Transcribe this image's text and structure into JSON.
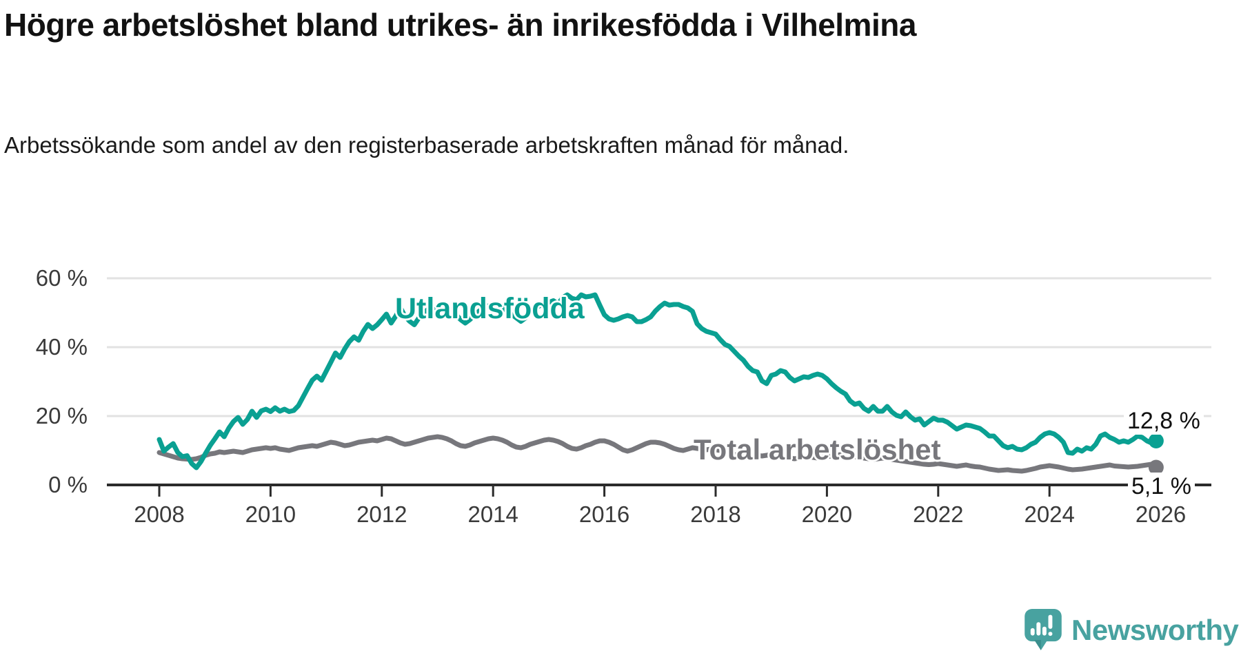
{
  "title": "Högre arbetslöshet bland utrikes- än inrikesfödda i Vilhelmina",
  "subtitle": "Arbetssökande som andel av den registerbaserade arbetskraften månad för månad.",
  "branding": {
    "name": "Newsworthy",
    "color": "#48a2a0",
    "icon": "newsworthy-speech-bubble-chart-icon"
  },
  "chart_data": {
    "type": "line",
    "title": "Högre arbetslöshet bland utrikes- än inrikesfödda i Vilhelmina",
    "xlabel": "",
    "ylabel": "Arbetssökande som andel av den registerbaserade arbetskraften",
    "frequency": "monthly",
    "x_start": "2008-01",
    "x_end": "2025-12",
    "ylim": [
      0,
      60
    ],
    "grid": true,
    "gridline_values": [
      20,
      40,
      60
    ],
    "gridline_color": "#e2e2e2",
    "axis_color": "#2b2b2b",
    "y_axis_labels": [
      {
        "value": 60,
        "label": "60 %"
      },
      {
        "value": 40,
        "label": "40 %"
      },
      {
        "value": 20,
        "label": "20 %"
      },
      {
        "value": 0,
        "label": "0 %"
      }
    ],
    "x_axis_ticks": [
      {
        "year": 2008,
        "label": "2008",
        "tick_mark": true
      },
      {
        "year": 2010,
        "label": "2010",
        "tick_mark": true
      },
      {
        "year": 2012,
        "label": "2012",
        "tick_mark": true
      },
      {
        "year": 2014,
        "label": "2014",
        "tick_mark": true
      },
      {
        "year": 2016,
        "label": "2016",
        "tick_mark": true
      },
      {
        "year": 2018,
        "label": "2018",
        "tick_mark": true
      },
      {
        "year": 2020,
        "label": "2020",
        "tick_mark": true
      },
      {
        "year": 2022,
        "label": "2022",
        "tick_mark": true
      },
      {
        "year": 2024,
        "label": "2024",
        "tick_mark": true
      },
      {
        "year": 2026,
        "label": "2026",
        "tick_mark": false
      }
    ],
    "legend": "inline-labels",
    "series": [
      {
        "name": "Utlandsfödda",
        "color": "#0aa092",
        "end_label": "12,8 %",
        "end_value": 12.8,
        "values": [
          13.2,
          9.8,
          11.0,
          12.0,
          9.4,
          8.2,
          8.5,
          6.2,
          5.0,
          6.8,
          9.2,
          11.5,
          13.4,
          15.4,
          14.0,
          16.5,
          18.4,
          19.6,
          17.6,
          19.0,
          21.4,
          19.6,
          21.5,
          22.0,
          21.3,
          22.4,
          21.4,
          22.0,
          21.3,
          21.6,
          23.0,
          25.5,
          28.0,
          30.4,
          31.6,
          30.4,
          33.0,
          35.6,
          38.3,
          37.0,
          39.5,
          41.6,
          43.0,
          42.0,
          44.6,
          46.6,
          45.4,
          46.5,
          48.0,
          49.6,
          47.0,
          49.0,
          51.5,
          49.0,
          47.5,
          46.5,
          48.5,
          50.0,
          51.0,
          50.0,
          51.5,
          52.0,
          50.5,
          51.0,
          49.5,
          48.0,
          47.0,
          48.0,
          49.5,
          50.5,
          51.5,
          52.0,
          51.0,
          52.5,
          51.5,
          50.5,
          49.5,
          48.5,
          47.5,
          48.5,
          50.0,
          51.0,
          52.0,
          52.5,
          53.0,
          53.5,
          52.5,
          54.4,
          55.2,
          54.2,
          53.8,
          55.2,
          54.6,
          54.8,
          55.2,
          52.2,
          49.4,
          48.2,
          47.8,
          48.2,
          48.8,
          49.2,
          48.8,
          47.4,
          47.4,
          48.0,
          48.8,
          50.5,
          51.8,
          52.8,
          52.2,
          52.4,
          52.4,
          51.8,
          51.4,
          50.4,
          46.8,
          45.4,
          44.6,
          44.2,
          43.8,
          42.2,
          40.8,
          40.2,
          38.8,
          37.4,
          36.2,
          34.4,
          33.2,
          32.8,
          30.2,
          29.4,
          31.8,
          32.2,
          33.2,
          32.8,
          31.2,
          30.2,
          30.8,
          31.4,
          31.2,
          31.8,
          32.2,
          31.8,
          30.8,
          29.4,
          28.2,
          27.2,
          26.4,
          24.4,
          23.4,
          23.8,
          22.2,
          21.4,
          22.8,
          21.4,
          21.4,
          22.8,
          21.2,
          20.2,
          19.8,
          21.2,
          19.8,
          18.8,
          19.2,
          17.4,
          18.4,
          19.4,
          18.8,
          18.8,
          18.2,
          17.2,
          16.2,
          16.8,
          17.4,
          17.2,
          16.8,
          16.4,
          15.4,
          14.2,
          14.2,
          12.8,
          11.4,
          10.8,
          11.2,
          10.4,
          10.2,
          10.8,
          11.8,
          12.4,
          13.8,
          14.8,
          15.2,
          14.8,
          13.8,
          12.4,
          9.4,
          9.2,
          10.4,
          9.8,
          10.8,
          10.4,
          11.8,
          14.2,
          14.8,
          13.8,
          13.2,
          12.4,
          12.8,
          12.4,
          13.2,
          14.2,
          13.8,
          12.8,
          12.2,
          12.8
        ]
      },
      {
        "name": "Total arbetslöshet",
        "color": "#77777c",
        "end_label": "5,1 %",
        "end_value": 5.1,
        "values": [
          9.4,
          9.0,
          8.6,
          8.2,
          7.8,
          7.6,
          7.5,
          7.4,
          7.6,
          8.0,
          8.6,
          9.0,
          9.2,
          9.6,
          9.4,
          9.6,
          9.8,
          9.6,
          9.4,
          9.8,
          10.2,
          10.4,
          10.6,
          10.8,
          10.6,
          10.8,
          10.4,
          10.2,
          10.0,
          10.4,
          10.8,
          11.0,
          11.2,
          11.4,
          11.2,
          11.6,
          12.0,
          12.4,
          12.2,
          11.8,
          11.4,
          11.6,
          12.0,
          12.4,
          12.6,
          12.8,
          13.0,
          12.8,
          13.2,
          13.6,
          13.4,
          12.8,
          12.2,
          11.8,
          12.0,
          12.4,
          12.8,
          13.2,
          13.6,
          13.8,
          14.0,
          13.8,
          13.4,
          12.8,
          12.0,
          11.4,
          11.2,
          11.6,
          12.2,
          12.6,
          13.0,
          13.4,
          13.6,
          13.4,
          13.0,
          12.4,
          11.6,
          11.0,
          10.8,
          11.2,
          11.8,
          12.2,
          12.6,
          13.0,
          13.2,
          13.0,
          12.6,
          12.0,
          11.2,
          10.6,
          10.4,
          10.8,
          11.4,
          11.8,
          12.4,
          12.8,
          12.8,
          12.4,
          11.8,
          11.0,
          10.2,
          9.8,
          10.2,
          10.8,
          11.4,
          12.0,
          12.4,
          12.4,
          12.2,
          11.8,
          11.2,
          10.6,
          10.2,
          10.0,
          10.4,
          10.8,
          10.6,
          10.4,
          10.2,
          10.4,
          10.2,
          10.0,
          9.6,
          9.2,
          8.8,
          8.6,
          8.8,
          9.0,
          8.8,
          8.6,
          8.4,
          8.6,
          8.8,
          8.6,
          8.4,
          8.2,
          7.8,
          7.6,
          7.8,
          8.0,
          8.2,
          8.0,
          7.8,
          8.0,
          8.2,
          8.4,
          8.6,
          8.8,
          8.6,
          8.4,
          8.2,
          8.0,
          7.8,
          7.6,
          7.4,
          7.6,
          7.8,
          7.6,
          7.4,
          7.2,
          7.0,
          6.8,
          6.6,
          6.4,
          6.2,
          6.0,
          5.9,
          6.0,
          6.2,
          6.0,
          5.8,
          5.6,
          5.4,
          5.6,
          5.8,
          5.5,
          5.3,
          5.2,
          4.9,
          4.6,
          4.4,
          4.2,
          4.3,
          4.4,
          4.2,
          4.1,
          4.0,
          4.2,
          4.5,
          4.8,
          5.2,
          5.4,
          5.6,
          5.4,
          5.2,
          4.9,
          4.6,
          4.4,
          4.5,
          4.6,
          4.8,
          5.0,
          5.2,
          5.4,
          5.6,
          5.8,
          5.5,
          5.4,
          5.3,
          5.2,
          5.3,
          5.4,
          5.6,
          5.8,
          6.0,
          5.1
        ]
      }
    ]
  }
}
